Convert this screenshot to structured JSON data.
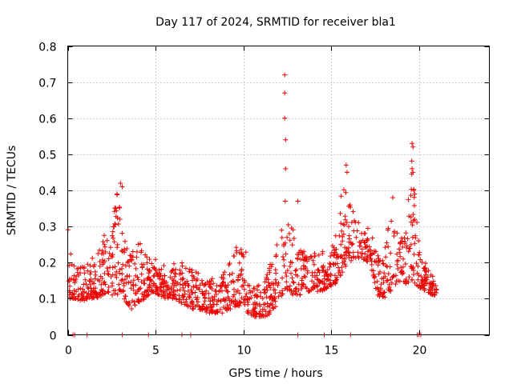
{
  "chart_data": {
    "type": "scatter",
    "title": "Day 117 of 2024, SRMTID for receiver bla1",
    "xlabel": "GPS time / hours",
    "ylabel": "SRMTID / TECUs",
    "xlim": [
      0,
      24
    ],
    "ylim": [
      0,
      0.8
    ],
    "xticks": [
      0,
      5,
      10,
      15,
      20
    ],
    "yticks": [
      0,
      0.1,
      0.2,
      0.3,
      0.4,
      0.5,
      0.6,
      0.7,
      0.8
    ],
    "xtick_labels": [
      "0",
      "5",
      "10",
      "15",
      "20"
    ],
    "ytick_labels": [
      "0",
      "0.1",
      "0.2",
      "0.3",
      "0.4",
      "0.5",
      "0.6",
      "0.7",
      "0.8"
    ],
    "grid": true,
    "marker": "+",
    "color": "#ee0000",
    "envelope": {
      "x": [
        0.0,
        0.4,
        0.8,
        1.2,
        1.6,
        2.0,
        2.4,
        2.8,
        3.2,
        3.6,
        4.0,
        4.4,
        4.8,
        5.2,
        5.6,
        6.0,
        6.4,
        6.8,
        7.2,
        7.6,
        8.0,
        8.4,
        8.8,
        9.2,
        9.6,
        10.0,
        10.4,
        10.8,
        11.2,
        11.6,
        12.0,
        12.4,
        12.8,
        13.2,
        13.6,
        14.0,
        14.4,
        14.8,
        15.2,
        15.6,
        16.0,
        16.4,
        16.8,
        17.2,
        17.6,
        18.0,
        18.4,
        18.8,
        19.2,
        19.6,
        20.0,
        20.4,
        20.8,
        21.0
      ],
      "low": [
        0.1,
        0.1,
        0.09,
        0.1,
        0.1,
        0.11,
        0.1,
        0.11,
        0.1,
        0.07,
        0.09,
        0.1,
        0.12,
        0.11,
        0.1,
        0.1,
        0.09,
        0.08,
        0.07,
        0.07,
        0.06,
        0.06,
        0.06,
        0.07,
        0.08,
        0.08,
        0.05,
        0.05,
        0.05,
        0.06,
        0.09,
        0.13,
        0.11,
        0.11,
        0.12,
        0.12,
        0.12,
        0.13,
        0.14,
        0.17,
        0.2,
        0.21,
        0.21,
        0.2,
        0.11,
        0.1,
        0.12,
        0.15,
        0.14,
        0.15,
        0.13,
        0.12,
        0.11,
        0.11
      ],
      "high": [
        0.32,
        0.2,
        0.19,
        0.22,
        0.22,
        0.3,
        0.24,
        0.41,
        0.27,
        0.22,
        0.26,
        0.24,
        0.22,
        0.2,
        0.19,
        0.2,
        0.21,
        0.18,
        0.19,
        0.16,
        0.16,
        0.16,
        0.18,
        0.21,
        0.25,
        0.29,
        0.14,
        0.14,
        0.16,
        0.21,
        0.28,
        0.34,
        0.3,
        0.25,
        0.22,
        0.23,
        0.24,
        0.23,
        0.26,
        0.43,
        0.38,
        0.32,
        0.3,
        0.3,
        0.22,
        0.24,
        0.36,
        0.3,
        0.28,
        0.51,
        0.24,
        0.2,
        0.16,
        0.13
      ]
    },
    "outliers": [
      {
        "x": 12.35,
        "y": 0.72
      },
      {
        "x": 12.35,
        "y": 0.67
      },
      {
        "x": 12.35,
        "y": 0.6
      },
      {
        "x": 12.4,
        "y": 0.54
      },
      {
        "x": 12.4,
        "y": 0.46
      },
      {
        "x": 12.38,
        "y": 0.37
      },
      {
        "x": 13.1,
        "y": 0.37
      },
      {
        "x": 3.0,
        "y": 0.42
      },
      {
        "x": 3.1,
        "y": 0.41
      },
      {
        "x": 2.8,
        "y": 0.39
      },
      {
        "x": 15.85,
        "y": 0.47
      },
      {
        "x": 15.9,
        "y": 0.45
      },
      {
        "x": 19.6,
        "y": 0.53
      },
      {
        "x": 19.65,
        "y": 0.52
      },
      {
        "x": 19.6,
        "y": 0.46
      },
      {
        "x": 19.65,
        "y": 0.45
      },
      {
        "x": 19.7,
        "y": 0.4
      },
      {
        "x": 18.5,
        "y": 0.38
      }
    ],
    "baseline_points": {
      "y": 0,
      "x": [
        0.3,
        0.4,
        1.1,
        3.1,
        4.6,
        6.5,
        7.0,
        13.1,
        14.6,
        16.1,
        19.9,
        20.0,
        20.1
      ]
    }
  }
}
